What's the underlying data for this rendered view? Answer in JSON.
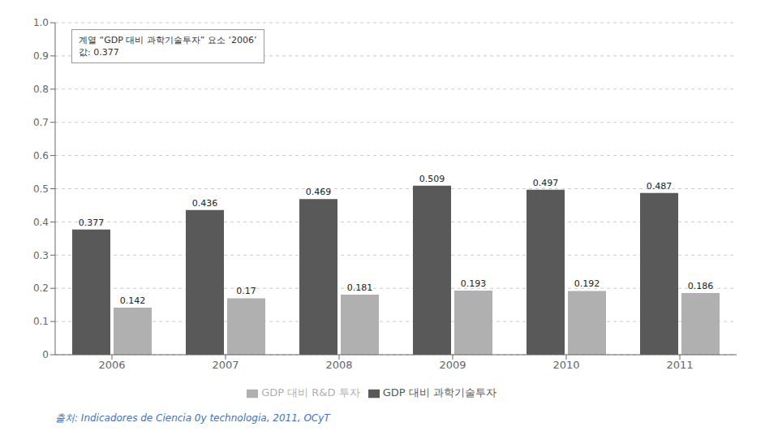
{
  "chart_data": {
    "type": "bar",
    "categories": [
      "2006",
      "2007",
      "2008",
      "2009",
      "2010",
      "2011"
    ],
    "series": [
      {
        "name": "GDP 대비 과학기술투자",
        "color": "#595959",
        "values": [
          0.377,
          0.436,
          0.469,
          0.509,
          0.497,
          0.487
        ]
      },
      {
        "name": "GDP 대비 R&D 투자",
        "color": "#b0b0b0",
        "values": [
          0.142,
          0.17,
          0.181,
          0.193,
          0.192,
          0.186
        ]
      }
    ],
    "ylim": [
      0,
      1
    ],
    "yticks": [
      0,
      0.1,
      0.2,
      0.3,
      0.4,
      0.5,
      0.6,
      0.7,
      0.8,
      0.9,
      {
        "value": 1,
        "label": "1.0"
      }
    ],
    "grid": true,
    "legend": "bottom",
    "data_labels": true,
    "annotations": [
      {
        "lines": [
          "계열 “GDP 대비 과학기술투자” 요소 ‘2006’",
          "값: 0.377"
        ]
      },
      {
        "lines": [
          "출처: Indicadores de Ciencia 0y technologia, 2011, OCyT"
        ],
        "color": "#4472c4"
      }
    ]
  }
}
